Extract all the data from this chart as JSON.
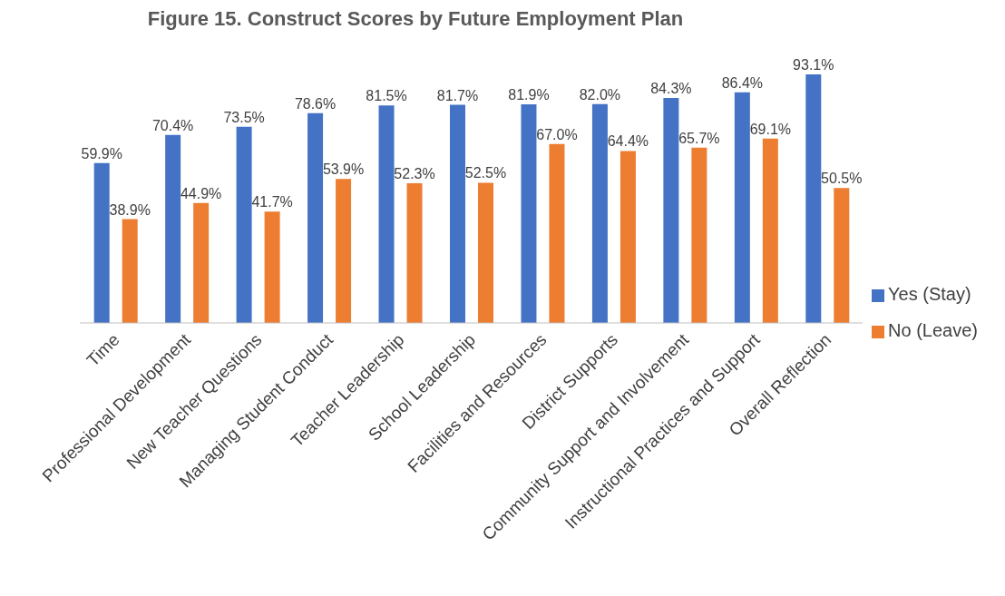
{
  "chart_data": {
    "type": "bar",
    "title": "Figure 15. Construct Scores by Future Employment Plan",
    "categories": [
      "Time",
      "Professional Development",
      "New Teacher Questions",
      "Managing Student Conduct",
      "Teacher Leadership",
      "School Leadership",
      "Facilities and Resources",
      "District Supports",
      "Community Support and Involvement",
      "Instructional Practices and Support",
      "Overall Reflection"
    ],
    "series": [
      {
        "name": "Yes (Stay)",
        "color": "#4472c4",
        "values": [
          59.9,
          70.4,
          73.5,
          78.6,
          81.5,
          81.7,
          81.9,
          82.0,
          84.3,
          86.4,
          93.1
        ],
        "value_labels": [
          "59.9%",
          "70.4%",
          "73.5%",
          "78.6%",
          "81.5%",
          "81.7%",
          "81.9%",
          "82.0%",
          "84.3%",
          "86.4%",
          "93.1%"
        ]
      },
      {
        "name": "No (Leave)",
        "color": "#ed7d31",
        "values": [
          38.9,
          44.9,
          41.7,
          53.9,
          52.3,
          52.5,
          67.0,
          64.4,
          65.7,
          69.1,
          50.5
        ],
        "value_labels": [
          "38.9%",
          "44.9%",
          "41.7%",
          "53.9%",
          "52.3%",
          "52.5%",
          "67.0%",
          "64.4%",
          "65.7%",
          "69.1%",
          "50.5%"
        ]
      }
    ],
    "legend": "right",
    "grid": false
  }
}
